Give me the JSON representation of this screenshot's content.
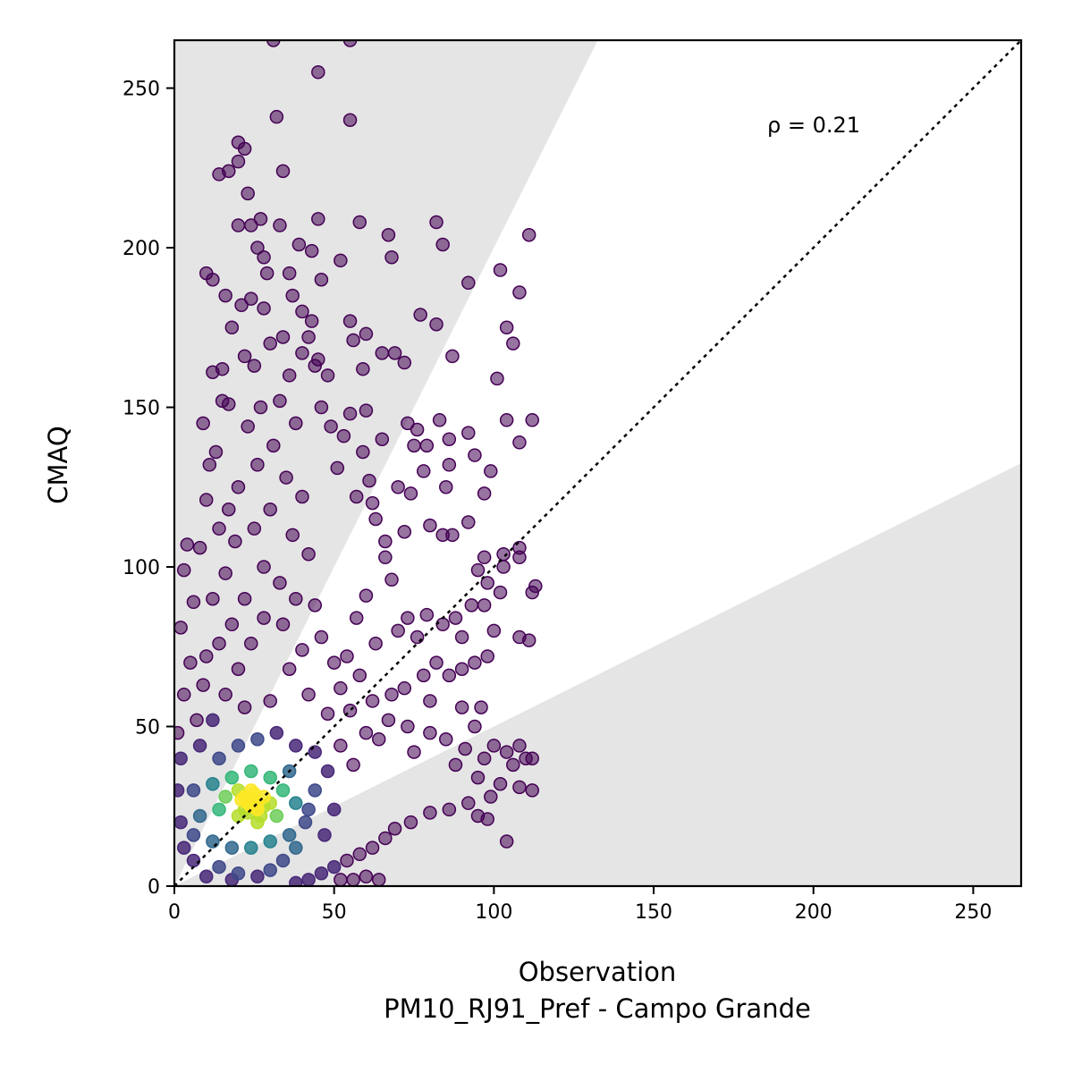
{
  "chart_data": {
    "type": "scatter",
    "xlabel": "Observation",
    "xlabel_sub": "PM10_RJ91_Pref - Campo Grande",
    "ylabel": "CMAQ",
    "xlim": [
      0,
      265
    ],
    "ylim": [
      0,
      265
    ],
    "xticks": [
      0,
      50,
      100,
      150,
      200,
      250
    ],
    "yticks": [
      0,
      50,
      100,
      150,
      200,
      250
    ],
    "annotation": "ρ = 0.21",
    "reference_line": {
      "style": "dotted",
      "slope": 1,
      "intercept": 0,
      "color": "#000000"
    },
    "factor_of_two_band": {
      "upper_slope": 2,
      "lower_slope": 0.5,
      "outside_color": "#e5e5e5"
    },
    "colormap": [
      "#440154",
      "#482878",
      "#3e4989",
      "#31688e",
      "#26828e",
      "#1f9e89",
      "#35b779",
      "#6ece58",
      "#b5de2b",
      "#fde725"
    ],
    "density_peak": {
      "x": 24,
      "y": 26
    },
    "points": [
      [
        31,
        265
      ],
      [
        55,
        265
      ],
      [
        45,
        255
      ],
      [
        32,
        241
      ],
      [
        55,
        240
      ],
      [
        20,
        233
      ],
      [
        22,
        231
      ],
      [
        20,
        227
      ],
      [
        14,
        223
      ],
      [
        17,
        224
      ],
      [
        34,
        224
      ],
      [
        23,
        217
      ],
      [
        20,
        207
      ],
      [
        24,
        207
      ],
      [
        33,
        207
      ],
      [
        27,
        209
      ],
      [
        45,
        209
      ],
      [
        58,
        208
      ],
      [
        82,
        208
      ],
      [
        67,
        204
      ],
      [
        111,
        204
      ],
      [
        84,
        201
      ],
      [
        39,
        201
      ],
      [
        26,
        200
      ],
      [
        43,
        199
      ],
      [
        28,
        197
      ],
      [
        68,
        197
      ],
      [
        52,
        196
      ],
      [
        10,
        192
      ],
      [
        29,
        192
      ],
      [
        36,
        192
      ],
      [
        102,
        193
      ],
      [
        46,
        190
      ],
      [
        92,
        189
      ],
      [
        108,
        186
      ],
      [
        37,
        185
      ],
      [
        21,
        182
      ],
      [
        28,
        181
      ],
      [
        40,
        180
      ],
      [
        43,
        177
      ],
      [
        77,
        179
      ],
      [
        55,
        177
      ],
      [
        82,
        176
      ],
      [
        104,
        175
      ],
      [
        60,
        173
      ],
      [
        56,
        171
      ],
      [
        106,
        170
      ],
      [
        87,
        166
      ],
      [
        65,
        167
      ],
      [
        69,
        167
      ],
      [
        72,
        164
      ],
      [
        45,
        165
      ],
      [
        59,
        162
      ],
      [
        101,
        159
      ],
      [
        55,
        148
      ],
      [
        60,
        149
      ],
      [
        73,
        145
      ],
      [
        76,
        143
      ],
      [
        83,
        146
      ],
      [
        104,
        146
      ],
      [
        112,
        146
      ],
      [
        65,
        140
      ],
      [
        75,
        138
      ],
      [
        79,
        138
      ],
      [
        86,
        140
      ],
      [
        92,
        142
      ],
      [
        94,
        135
      ],
      [
        99,
        130
      ],
      [
        108,
        139
      ],
      [
        86,
        132
      ],
      [
        78,
        130
      ],
      [
        70,
        125
      ],
      [
        74,
        123
      ],
      [
        85,
        125
      ],
      [
        97,
        123
      ],
      [
        92,
        114
      ],
      [
        80,
        113
      ],
      [
        72,
        111
      ],
      [
        66,
        108
      ],
      [
        62,
        120
      ],
      [
        84,
        110
      ],
      [
        87,
        110
      ],
      [
        103,
        104
      ],
      [
        97,
        103
      ],
      [
        108,
        106
      ],
      [
        108,
        103
      ],
      [
        103,
        100
      ],
      [
        95,
        99
      ],
      [
        98,
        95
      ],
      [
        113,
        94
      ],
      [
        112,
        92
      ],
      [
        102,
        92
      ],
      [
        97,
        88
      ],
      [
        93,
        88
      ],
      [
        88,
        84
      ],
      [
        84,
        82
      ],
      [
        79,
        85
      ],
      [
        73,
        84
      ],
      [
        70,
        80
      ],
      [
        76,
        78
      ],
      [
        90,
        78
      ],
      [
        100,
        80
      ],
      [
        108,
        78
      ],
      [
        111,
        77
      ],
      [
        98,
        72
      ],
      [
        94,
        70
      ],
      [
        90,
        68
      ],
      [
        82,
        70
      ],
      [
        86,
        66
      ],
      [
        78,
        66
      ],
      [
        72,
        62
      ],
      [
        68,
        60
      ],
      [
        80,
        58
      ],
      [
        90,
        56
      ],
      [
        96,
        56
      ],
      [
        94,
        50
      ],
      [
        100,
        44
      ],
      [
        104,
        42
      ],
      [
        108,
        44
      ],
      [
        110,
        40
      ],
      [
        112,
        40
      ],
      [
        106,
        38
      ],
      [
        97,
        40
      ],
      [
        91,
        43
      ],
      [
        85,
        46
      ],
      [
        80,
        48
      ],
      [
        73,
        50
      ],
      [
        67,
        52
      ],
      [
        64,
        46
      ],
      [
        75,
        42
      ],
      [
        88,
        38
      ],
      [
        95,
        34
      ],
      [
        102,
        32
      ],
      [
        108,
        31
      ],
      [
        112,
        30
      ],
      [
        99,
        28
      ],
      [
        92,
        26
      ],
      [
        86,
        24
      ],
      [
        80,
        23
      ],
      [
        74,
        20
      ],
      [
        69,
        18
      ],
      [
        66,
        15
      ],
      [
        62,
        12
      ],
      [
        58,
        10
      ],
      [
        54,
        8
      ],
      [
        50,
        6
      ],
      [
        46,
        4
      ],
      [
        42,
        2
      ],
      [
        104,
        14
      ],
      [
        98,
        21
      ],
      [
        95,
        22
      ],
      [
        60,
        3
      ],
      [
        56,
        2
      ],
      [
        64,
        2
      ],
      [
        52,
        2
      ],
      [
        38,
        1
      ],
      [
        3,
        99
      ],
      [
        4,
        107
      ],
      [
        8,
        106
      ],
      [
        6,
        89
      ],
      [
        2,
        81
      ],
      [
        5,
        70
      ],
      [
        3,
        60
      ],
      [
        1,
        48
      ],
      [
        7,
        52
      ],
      [
        9,
        63
      ],
      [
        2,
        40
      ],
      [
        1,
        30
      ],
      [
        10,
        121
      ],
      [
        11,
        132
      ],
      [
        13,
        136
      ],
      [
        9,
        145
      ],
      [
        12,
        161
      ],
      [
        15,
        152
      ],
      [
        15,
        162
      ],
      [
        17,
        151
      ],
      [
        22,
        166
      ],
      [
        25,
        163
      ],
      [
        18,
        175
      ],
      [
        16,
        185
      ],
      [
        12,
        190
      ],
      [
        24,
        184
      ],
      [
        30,
        170
      ],
      [
        34,
        172
      ],
      [
        36,
        160
      ],
      [
        40,
        167
      ],
      [
        42,
        172
      ],
      [
        44,
        163
      ],
      [
        48,
        160
      ],
      [
        46,
        150
      ],
      [
        49,
        144
      ],
      [
        51,
        131
      ],
      [
        53,
        141
      ],
      [
        57,
        122
      ],
      [
        59,
        136
      ],
      [
        61,
        127
      ],
      [
        63,
        115
      ],
      [
        66,
        103
      ],
      [
        68,
        96
      ],
      [
        60,
        91
      ],
      [
        57,
        84
      ],
      [
        63,
        76
      ],
      [
        54,
        72
      ],
      [
        58,
        66
      ],
      [
        62,
        58
      ],
      [
        55,
        55
      ],
      [
        60,
        48
      ],
      [
        52,
        44
      ],
      [
        56,
        38
      ],
      [
        48,
        36
      ],
      [
        44,
        30
      ],
      [
        50,
        24
      ],
      [
        41,
        20
      ],
      [
        47,
        16
      ],
      [
        38,
        12
      ],
      [
        34,
        8
      ],
      [
        30,
        5
      ],
      [
        26,
        3
      ],
      [
        20,
        4
      ],
      [
        18,
        2
      ],
      [
        14,
        6
      ],
      [
        10,
        3
      ],
      [
        6,
        8
      ],
      [
        3,
        12
      ],
      [
        2,
        20
      ],
      [
        23,
        144
      ],
      [
        27,
        150
      ],
      [
        33,
        152
      ],
      [
        38,
        145
      ],
      [
        31,
        138
      ],
      [
        26,
        132
      ],
      [
        35,
        128
      ],
      [
        40,
        122
      ],
      [
        30,
        118
      ],
      [
        25,
        112
      ],
      [
        37,
        110
      ],
      [
        42,
        104
      ],
      [
        28,
        100
      ],
      [
        33,
        95
      ],
      [
        20,
        125
      ],
      [
        17,
        118
      ],
      [
        19,
        108
      ],
      [
        14,
        112
      ],
      [
        16,
        98
      ],
      [
        12,
        90
      ],
      [
        22,
        90
      ],
      [
        18,
        82
      ],
      [
        14,
        76
      ],
      [
        10,
        72
      ],
      [
        24,
        76
      ],
      [
        20,
        68
      ],
      [
        28,
        84
      ],
      [
        34,
        82
      ],
      [
        38,
        90
      ],
      [
        44,
        88
      ],
      [
        46,
        78
      ],
      [
        40,
        74
      ],
      [
        36,
        68
      ],
      [
        50,
        70
      ],
      [
        52,
        62
      ],
      [
        42,
        60
      ],
      [
        48,
        54
      ],
      [
        30,
        58
      ],
      [
        22,
        56
      ],
      [
        16,
        60
      ],
      [
        12,
        52
      ],
      [
        8,
        44
      ],
      [
        14,
        40
      ],
      [
        20,
        44
      ],
      [
        26,
        46
      ],
      [
        32,
        48
      ],
      [
        38,
        44
      ],
      [
        44,
        42
      ],
      [
        36,
        36
      ],
      [
        30,
        34
      ],
      [
        24,
        36
      ],
      [
        18,
        34
      ],
      [
        12,
        32
      ],
      [
        6,
        30
      ],
      [
        8,
        22
      ],
      [
        14,
        24
      ],
      [
        20,
        22
      ],
      [
        26,
        20
      ],
      [
        32,
        22
      ],
      [
        38,
        26
      ],
      [
        42,
        24
      ],
      [
        36,
        16
      ],
      [
        30,
        14
      ],
      [
        24,
        12
      ],
      [
        18,
        12
      ],
      [
        12,
        14
      ],
      [
        6,
        16
      ],
      [
        28,
        28
      ],
      [
        22,
        28
      ],
      [
        16,
        28
      ],
      [
        34,
        30
      ],
      [
        26,
        24
      ],
      [
        20,
        30
      ],
      [
        30,
        26
      ],
      [
        24,
        30
      ],
      [
        22,
        24
      ],
      [
        27,
        22
      ],
      [
        25,
        27
      ],
      [
        23,
        26
      ],
      [
        26,
        26
      ],
      [
        24,
        25
      ],
      [
        21,
        27
      ],
      [
        28,
        25
      ],
      [
        25,
        29
      ],
      [
        23,
        23
      ]
    ]
  }
}
